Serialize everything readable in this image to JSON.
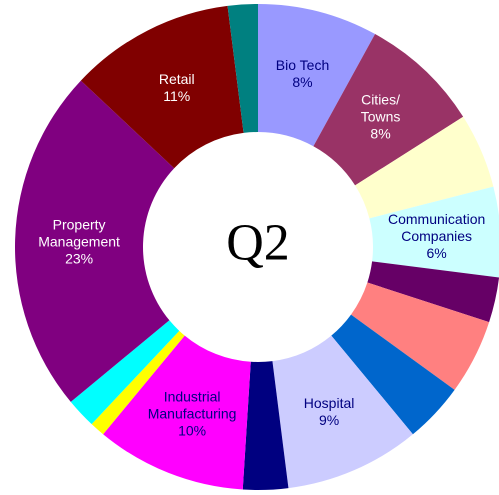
{
  "chart_data": {
    "type": "donut",
    "title": "Q2",
    "categories": [
      "Bio Tech",
      "Cities/\nTowns",
      null,
      "Communication\nCompanies",
      null,
      null,
      null,
      "Hospital",
      null,
      "Industrial\nManufacturing",
      null,
      null,
      "Property\nManagement",
      "Retail",
      null
    ],
    "values": [
      8,
      8,
      5,
      6,
      3,
      5,
      4,
      9,
      3,
      10,
      1,
      2,
      23,
      11,
      2
    ],
    "value_labels": [
      "8%",
      "8%",
      null,
      "6%",
      null,
      null,
      null,
      "9%",
      null,
      "10%",
      null,
      null,
      "23%",
      "11%",
      null
    ],
    "colors": [
      "#9999ff",
      "#993366",
      "#ffffcc",
      "#ccffff",
      "#660066",
      "#ff8080",
      "#0066cc",
      "#ccccff",
      "#000080",
      "#ff00ff",
      "#ffff00",
      "#00ffff",
      "#800080",
      "#800000",
      "#008080"
    ],
    "label_colors": [
      "#000080",
      "#ffffff",
      null,
      "#000080",
      null,
      null,
      null,
      "#000080",
      null,
      "#000080",
      null,
      null,
      "#ffffff",
      "#ffffff",
      null
    ]
  }
}
